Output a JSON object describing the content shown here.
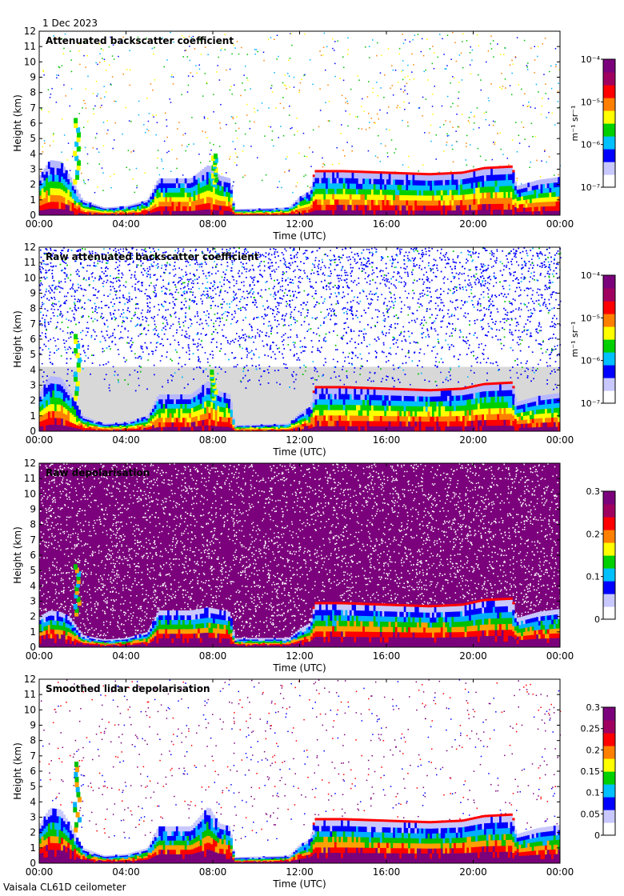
{
  "figure": {
    "date_label": "1 Dec 2023",
    "footer": "Vaisala CL61D ceilometer",
    "colors": {
      "white_area": "#ffffff",
      "clear_grey": "#d8d8d8",
      "purple": "#7b007b"
    }
  },
  "chart_data": [
    {
      "type": "heatmap",
      "title": "Attenuated backscatter coefficient",
      "xlabel": "Time (UTC)",
      "ylabel": "Height (km)",
      "xlim": [
        "00:00",
        "24:00"
      ],
      "ylim": [
        0,
        12
      ],
      "x_ticks": [
        "00:00",
        "04:00",
        "08:00",
        "12:00",
        "16:00",
        "20:00",
        "00:00"
      ],
      "y_ticks": [
        0,
        1,
        2,
        3,
        4,
        5,
        6,
        7,
        8,
        9,
        10,
        11,
        12
      ],
      "colorbar": {
        "scale": "log",
        "range": [
          1e-07,
          0.0001
        ],
        "ticks": [
          "10⁻⁷",
          "10⁻⁶",
          "10⁻⁵",
          "10⁻⁴"
        ],
        "label": "m⁻¹ sr⁻¹"
      },
      "background": "white",
      "sparse_noise": true,
      "cloud_top_km": [
        [
          0,
          2.5
        ],
        [
          0.5,
          3.6
        ],
        [
          1.0,
          3.5
        ],
        [
          1.4,
          2.6
        ],
        [
          2.0,
          1.0
        ],
        [
          3.0,
          0.5
        ],
        [
          4.0,
          0.6
        ],
        [
          5.0,
          1.0
        ],
        [
          5.5,
          2.4
        ],
        [
          7.0,
          2.4
        ],
        [
          7.8,
          3.3
        ],
        [
          8.3,
          2.6
        ],
        [
          8.8,
          2.4
        ],
        [
          9.0,
          0.4
        ],
        [
          11.5,
          0.5
        ],
        [
          12.0,
          1.2
        ],
        [
          12.5,
          1.6
        ],
        [
          12.7,
          2.8
        ],
        [
          14.0,
          2.8
        ],
        [
          16.0,
          2.7
        ],
        [
          18.0,
          2.6
        ],
        [
          19.5,
          2.7
        ],
        [
          20.5,
          3.0
        ],
        [
          21.8,
          3.1
        ],
        [
          22.0,
          1.9
        ],
        [
          23.0,
          2.3
        ],
        [
          24.0,
          2.5
        ]
      ],
      "spikes": [
        {
          "x": 1.7,
          "top_km": 6.3
        },
        {
          "x": 8.0,
          "top_km": 3.8
        }
      ]
    },
    {
      "type": "heatmap",
      "title": "Raw attenuated backscatter coefficient",
      "xlabel": "Time (UTC)",
      "ylabel": "Height (km)",
      "xlim": [
        "00:00",
        "24:00"
      ],
      "ylim": [
        0,
        12
      ],
      "x_ticks": [
        "00:00",
        "04:00",
        "08:00",
        "12:00",
        "16:00",
        "20:00",
        "00:00"
      ],
      "y_ticks": [
        0,
        1,
        2,
        3,
        4,
        5,
        6,
        7,
        8,
        9,
        10,
        11,
        12
      ],
      "colorbar": {
        "scale": "log",
        "range": [
          1e-07,
          0.0001
        ],
        "ticks": [
          "10⁻⁷",
          "10⁻⁶",
          "10⁻⁵",
          "10⁻⁴"
        ],
        "label": "m⁻¹ sr⁻¹"
      },
      "background": "grey-below-blue-noise",
      "dense_noise": "blue",
      "cloud_top_km": [
        [
          0,
          2.5
        ],
        [
          0.5,
          3.6
        ],
        [
          1.0,
          3.5
        ],
        [
          1.4,
          2.6
        ],
        [
          2.0,
          1.0
        ],
        [
          3.0,
          0.5
        ],
        [
          4.0,
          0.6
        ],
        [
          5.0,
          1.0
        ],
        [
          5.5,
          2.4
        ],
        [
          7.0,
          2.4
        ],
        [
          7.8,
          3.3
        ],
        [
          8.3,
          2.6
        ],
        [
          8.8,
          2.4
        ],
        [
          9.0,
          0.4
        ],
        [
          11.5,
          0.5
        ],
        [
          12.0,
          1.2
        ],
        [
          12.5,
          1.6
        ],
        [
          12.7,
          2.8
        ],
        [
          14.0,
          2.8
        ],
        [
          16.0,
          2.7
        ],
        [
          18.0,
          2.6
        ],
        [
          19.5,
          2.7
        ],
        [
          20.5,
          3.0
        ],
        [
          21.8,
          3.1
        ],
        [
          22.0,
          1.9
        ],
        [
          23.0,
          2.3
        ],
        [
          24.0,
          2.5
        ]
      ],
      "spikes": [
        {
          "x": 1.7,
          "top_km": 6.3
        },
        {
          "x": 8.0,
          "top_km": 3.8
        }
      ]
    },
    {
      "type": "heatmap",
      "title": "Raw depolarisation",
      "xlabel": "Time (UTC)",
      "ylabel": "Height (km)",
      "xlim": [
        "00:00",
        "24:00"
      ],
      "ylim": [
        0,
        12
      ],
      "x_ticks": [
        "00:00",
        "04:00",
        "08:00",
        "12:00",
        "16:00",
        "20:00",
        "00:00"
      ],
      "y_ticks": [
        0,
        1,
        2,
        3,
        4,
        5,
        6,
        7,
        8,
        9,
        10,
        11,
        12
      ],
      "colorbar": {
        "scale": "linear",
        "range": [
          0,
          0.3
        ],
        "ticks": [
          "0",
          "0.1",
          "0.2",
          "0.3"
        ],
        "label": ""
      },
      "background": "purple-noise",
      "dense_noise": "purple",
      "cloud_top_km": [
        [
          0,
          2.0
        ],
        [
          0.5,
          2.4
        ],
        [
          1.0,
          2.3
        ],
        [
          1.4,
          2.0
        ],
        [
          2.0,
          0.8
        ],
        [
          3.0,
          0.5
        ],
        [
          4.0,
          0.6
        ],
        [
          5.0,
          1.0
        ],
        [
          5.5,
          2.4
        ],
        [
          7.0,
          2.4
        ],
        [
          7.8,
          2.6
        ],
        [
          8.8,
          2.3
        ],
        [
          9.0,
          0.6
        ],
        [
          11.5,
          0.6
        ],
        [
          12.0,
          1.2
        ],
        [
          12.5,
          1.6
        ],
        [
          12.7,
          2.8
        ],
        [
          14.0,
          2.8
        ],
        [
          16.0,
          2.7
        ],
        [
          18.0,
          2.6
        ],
        [
          19.5,
          2.7
        ],
        [
          20.5,
          3.0
        ],
        [
          21.8,
          3.1
        ],
        [
          22.0,
          1.9
        ],
        [
          23.0,
          2.3
        ],
        [
          24.0,
          2.5
        ]
      ],
      "spikes": [
        {
          "x": 1.7,
          "top_km": 5.3
        }
      ]
    },
    {
      "type": "heatmap",
      "title": "Smoothed lidar depolarisation",
      "xlabel": "Time (UTC)",
      "ylabel": "Height (km)",
      "xlim": [
        "00:00",
        "24:00"
      ],
      "ylim": [
        0,
        12
      ],
      "x_ticks": [
        "00:00",
        "04:00",
        "08:00",
        "12:00",
        "16:00",
        "20:00",
        "00:00"
      ],
      "y_ticks": [
        0,
        1,
        2,
        3,
        4,
        5,
        6,
        7,
        8,
        9,
        10,
        11,
        12
      ],
      "colorbar": {
        "scale": "linear",
        "range": [
          0,
          0.3
        ],
        "ticks": [
          "0",
          "0.05",
          "0.1",
          "0.15",
          "0.2",
          "0.25",
          "0.3"
        ],
        "label": ""
      },
      "background": "white",
      "sparse_noise": true,
      "cloud_top_km": [
        [
          0,
          2.5
        ],
        [
          0.5,
          3.6
        ],
        [
          1.0,
          3.5
        ],
        [
          1.4,
          2.6
        ],
        [
          2.0,
          1.0
        ],
        [
          3.0,
          0.5
        ],
        [
          4.0,
          0.6
        ],
        [
          5.0,
          1.0
        ],
        [
          5.5,
          2.4
        ],
        [
          7.0,
          2.4
        ],
        [
          7.8,
          3.7
        ],
        [
          8.3,
          2.6
        ],
        [
          8.8,
          2.4
        ],
        [
          9.0,
          0.4
        ],
        [
          11.5,
          0.5
        ],
        [
          12.0,
          1.2
        ],
        [
          12.5,
          1.6
        ],
        [
          12.7,
          2.8
        ],
        [
          14.0,
          2.8
        ],
        [
          16.0,
          2.7
        ],
        [
          18.0,
          2.6
        ],
        [
          19.5,
          2.7
        ],
        [
          20.5,
          3.0
        ],
        [
          21.8,
          3.1
        ],
        [
          22.0,
          1.9
        ],
        [
          23.0,
          2.3
        ],
        [
          24.0,
          2.5
        ]
      ],
      "spikes": [
        {
          "x": 1.7,
          "top_km": 6.6
        }
      ]
    }
  ]
}
